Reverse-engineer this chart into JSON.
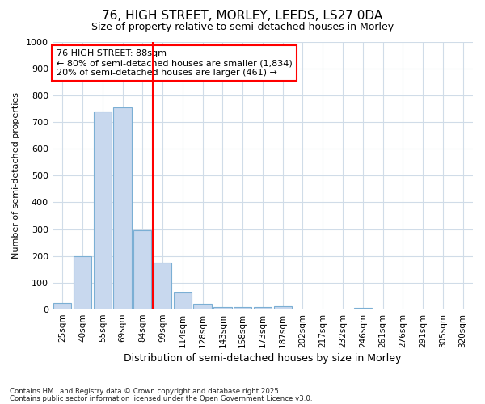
{
  "title1": "76, HIGH STREET, MORLEY, LEEDS, LS27 0DA",
  "title2": "Size of property relative to semi-detached houses in Morley",
  "xlabel": "Distribution of semi-detached houses by size in Morley",
  "ylabel": "Number of semi-detached properties",
  "categories": [
    "25sqm",
    "40sqm",
    "55sqm",
    "69sqm",
    "84sqm",
    "99sqm",
    "114sqm",
    "128sqm",
    "143sqm",
    "158sqm",
    "173sqm",
    "187sqm",
    "202sqm",
    "217sqm",
    "232sqm",
    "246sqm",
    "261sqm",
    "276sqm",
    "291sqm",
    "305sqm",
    "320sqm"
  ],
  "values": [
    25,
    200,
    740,
    755,
    295,
    175,
    65,
    20,
    10,
    10,
    10,
    12,
    0,
    0,
    0,
    5,
    0,
    0,
    0,
    0,
    0
  ],
  "bar_color": "#c8d8ee",
  "bar_edge_color": "#7bafd4",
  "vline_x": 4.5,
  "vline_color": "red",
  "ylim": [
    0,
    1000
  ],
  "yticks": [
    0,
    100,
    200,
    300,
    400,
    500,
    600,
    700,
    800,
    900,
    1000
  ],
  "annotation_title": "76 HIGH STREET: 88sqm",
  "annotation_line1": "← 80% of semi-detached houses are smaller (1,834)",
  "annotation_line2": "20% of semi-detached houses are larger (461) →",
  "annotation_box_color": "red",
  "footer1": "Contains HM Land Registry data © Crown copyright and database right 2025.",
  "footer2": "Contains public sector information licensed under the Open Government Licence v3.0.",
  "bg_color": "#ffffff",
  "plot_bg_color": "#ffffff",
  "grid_color": "#d0dce8"
}
